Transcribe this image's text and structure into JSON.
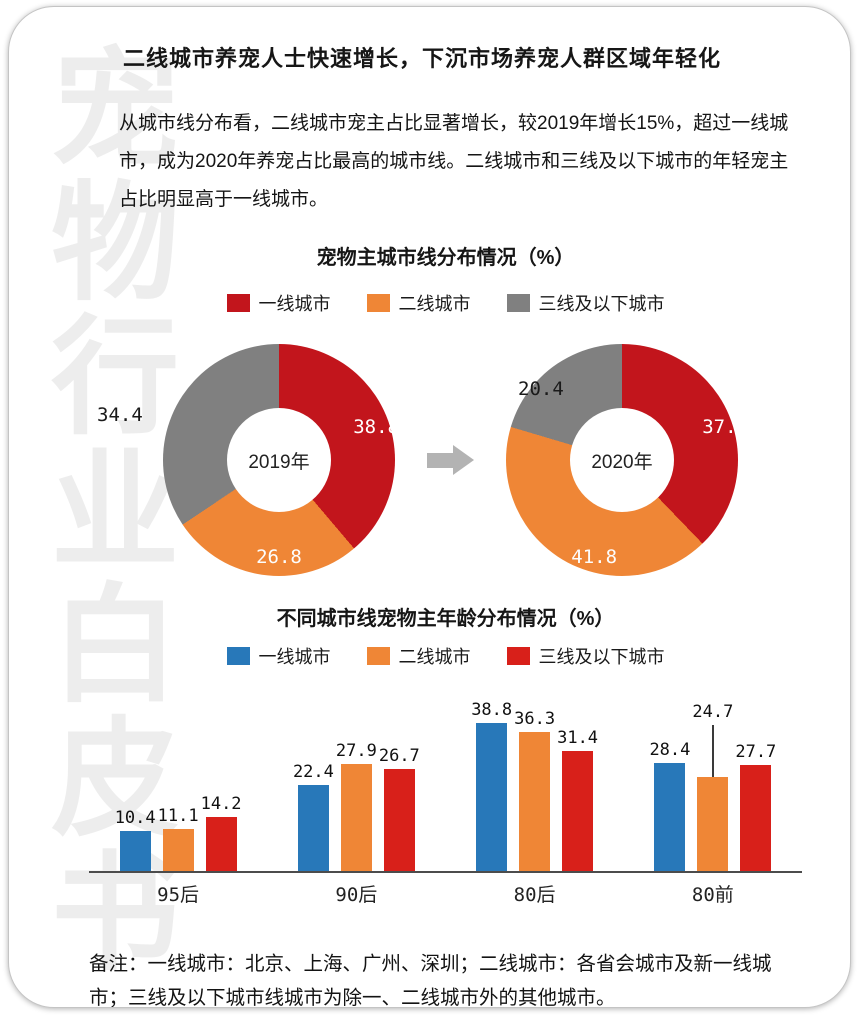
{
  "page": {
    "title": "二线城市养宠人士快速增长，下沉市场养宠人群区域年轻化",
    "paragraph": "从城市线分布看，二线城市宠主占比显著增长，较2019年增长15%，超过一线城市，成为2020年养宠占比最高的城市线。二线城市和三线及以下城市的年轻宠主占比明显高于一线城市。",
    "footnote": "备注：一线城市：北京、上海、广州、深圳；二线城市：各省会城市及新一线城市；三线及以下城市线城市为除一、二线城市外的其他城市。",
    "watermark": "宠物行业白皮书"
  },
  "chart_data": [
    {
      "type": "pie",
      "title": "宠物主城市线分布情况（%）",
      "legend": [
        {
          "label": "一线城市",
          "color": "#c2151c"
        },
        {
          "label": "二线城市",
          "color": "#ef8636"
        },
        {
          "label": "三线及以下城市",
          "color": "#808080"
        }
      ],
      "donuts": [
        {
          "center_label": "2019年",
          "values": [
            38.8,
            26.8,
            34.4
          ]
        },
        {
          "center_label": "2020年",
          "values": [
            37.8,
            41.8,
            20.4
          ]
        }
      ],
      "slice_order": "clockwise-from-top"
    },
    {
      "type": "bar",
      "title": "不同城市线宠物主年龄分布情况（%）",
      "categories": [
        "95后",
        "90后",
        "80后",
        "80前"
      ],
      "series": [
        {
          "name": "一线城市",
          "color": "#2878b9",
          "values": [
            10.4,
            22.4,
            38.8,
            28.4
          ]
        },
        {
          "name": "二线城市",
          "color": "#ef8636",
          "values": [
            11.1,
            27.9,
            36.3,
            24.7
          ]
        },
        {
          "name": "三线及以下城市",
          "color": "#d8201a",
          "values": [
            14.2,
            26.7,
            31.4,
            27.7
          ]
        }
      ],
      "ylim": [
        0,
        45
      ],
      "grid": false,
      "legend_position": "top",
      "label_lifts": [
        [
          0,
          0,
          0
        ],
        [
          0,
          0,
          0
        ],
        [
          0,
          0,
          0
        ],
        [
          0,
          52,
          0
        ]
      ]
    }
  ]
}
